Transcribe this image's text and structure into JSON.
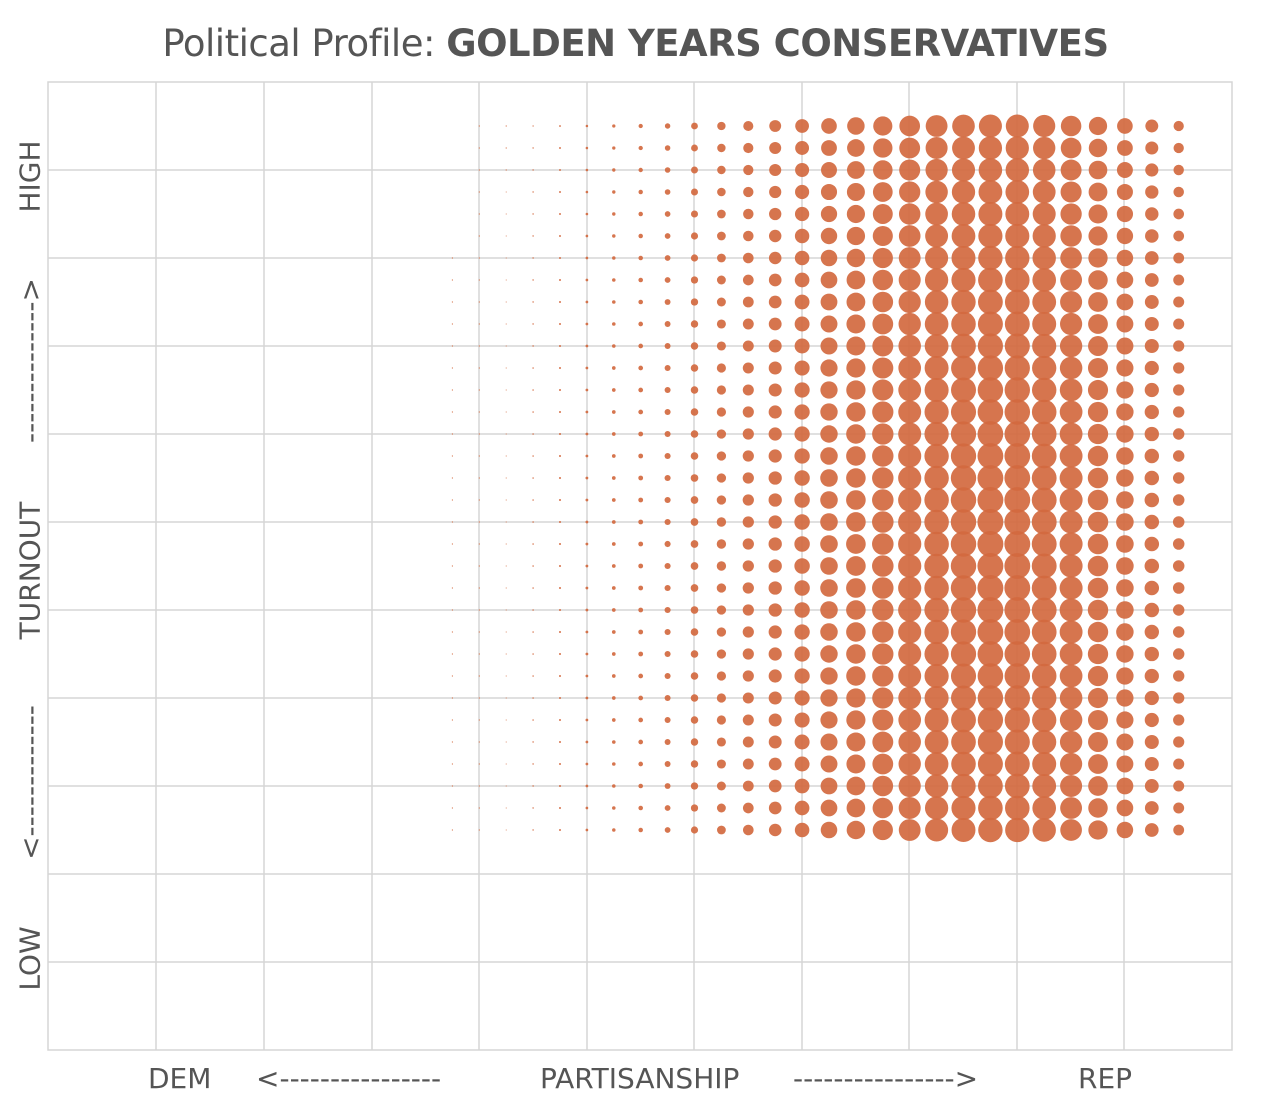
{
  "title": {
    "prefix": "Political Profile:",
    "name": "GOLDEN YEARS CONSERVATIVES"
  },
  "xaxis": {
    "low_label": "DEM",
    "left_arrow": "<----------------",
    "label": "PARTISANSHIP",
    "right_arrow": "---------------->",
    "high_label": "REP"
  },
  "yaxis": {
    "low_label": "LOW",
    "down_arrow": "<-------------",
    "label": "TURNOUT",
    "up_arrow": "-------------->",
    "high_label": "HIGH"
  },
  "colors": {
    "dot": "#d2693f",
    "grid": "#d6d6d6",
    "text": "#555555"
  },
  "chart_data": {
    "type": "scatter",
    "subtype": "dot-density grid",
    "title": "Political Profile: GOLDEN YEARS CONSERVATIVES",
    "xlabel": "PARTISANSHIP",
    "ylabel": "TURNOUT",
    "x_range": [
      "DEM",
      "REP"
    ],
    "y_range": [
      "LOW",
      "HIGH"
    ],
    "grid": true,
    "x_columns": 34,
    "y_rows": 33,
    "density_model": {
      "x_peak_col": 26.5,
      "x_spread_left": 5.2,
      "x_spread_right": 3.6,
      "y_peak_row": 19,
      "y_spread": 24,
      "max_relative_size": 1.0
    }
  }
}
